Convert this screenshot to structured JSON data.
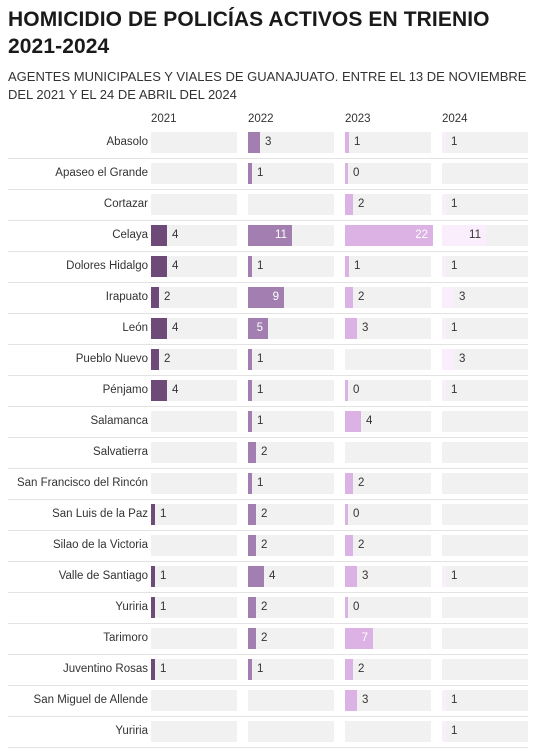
{
  "title": "HOMICIDIO DE POLICÍAS ACTIVOS EN TRIENIO 2021-2024",
  "subtitle": "AGENTES MUNICIPALES Y VIALES DE GUANAJUATO. ENTRE EL 13 DE NOVIEMBRE DEL 2021 Y EL 24 DE ABRIL DEL 2024",
  "colors": {
    "2021": "#6e4a78",
    "2022": "#a27fb0",
    "2023": "#dcb1e3",
    "2024": "#fbeefc",
    "cell_bg": "#f1f1f1"
  },
  "chart_data": {
    "type": "bar",
    "title": "HOMICIDIO DE POLICÍAS ACTIVOS EN TRIENIO 2021-2024",
    "subtitle": "AGENTES MUNICIPALES Y VIALES DE GUANAJUATO. ENTRE EL 13 DE NOVIEMBRE DEL 2021 Y EL 24 DE ABRIL DEL 2024",
    "xlim": [
      0,
      22
    ],
    "categories": [
      "Abasolo",
      "Apaseo el Grande",
      "Cortazar",
      "Celaya",
      "Dolores Hidalgo",
      "Irapuato",
      "León",
      "Pueblo Nuevo",
      "Pénjamo",
      "Salamanca",
      "Salvatierra",
      "San Francisco del Rincón",
      "San Luis de la Paz",
      "Silao de la Victoria",
      "Valle de Santiago",
      "Yuriria",
      "Tarimoro",
      "Juventino Rosas",
      "San Miguel de Allende",
      "Yuriria"
    ],
    "series": [
      {
        "name": "2021",
        "values": [
          null,
          null,
          null,
          4,
          4,
          2,
          4,
          2,
          4,
          null,
          null,
          null,
          1,
          null,
          1,
          1,
          null,
          1,
          null,
          null
        ]
      },
      {
        "name": "2022",
        "values": [
          3,
          1,
          null,
          11,
          1,
          9,
          5,
          1,
          1,
          1,
          2,
          1,
          2,
          2,
          4,
          2,
          2,
          1,
          null,
          null
        ]
      },
      {
        "name": "2023",
        "values": [
          1,
          0,
          2,
          22,
          1,
          2,
          3,
          null,
          0,
          4,
          null,
          2,
          0,
          2,
          3,
          0,
          7,
          2,
          3,
          null
        ]
      },
      {
        "name": "2024",
        "values": [
          1,
          null,
          1,
          11,
          1,
          3,
          1,
          3,
          1,
          null,
          null,
          null,
          null,
          null,
          1,
          null,
          null,
          null,
          1,
          1
        ]
      }
    ]
  }
}
